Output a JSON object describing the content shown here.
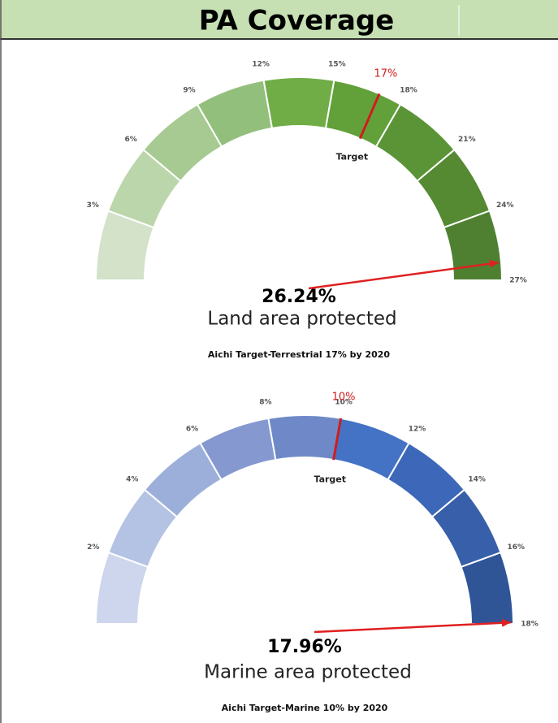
{
  "header": {
    "title": "PA Coverage"
  },
  "chart_data": [
    {
      "type": "gauge",
      "xlim": [
        0,
        27
      ],
      "xticks": [
        {
          "value": 3,
          "label": "3%"
        },
        {
          "value": 6,
          "label": "6%"
        },
        {
          "value": 9,
          "label": "9%"
        },
        {
          "value": 12,
          "label": "12%"
        },
        {
          "value": 15,
          "label": "15%"
        },
        {
          "value": 18,
          "label": "18%"
        },
        {
          "value": 21,
          "label": "21%"
        },
        {
          "value": 24,
          "label": "24%"
        },
        {
          "value": 27,
          "label": "27%"
        }
      ],
      "colors": [
        "#d3e2c9",
        "#bcd6ab",
        "#a7ca92",
        "#93bf7c",
        "#70ad47",
        "#62a03a",
        "#5a9436",
        "#558a33",
        "#4f8031"
      ],
      "target": {
        "value": 17,
        "label": "17%",
        "text": "Target"
      },
      "value": 26.24,
      "value_label": "26.24%",
      "caption": "Land area protected",
      "note": "Aichi Target-Terrestrial 17% by 2020"
    },
    {
      "type": "gauge",
      "xlim": [
        0,
        18
      ],
      "xticks": [
        {
          "value": 2,
          "label": "2%"
        },
        {
          "value": 4,
          "label": "4%"
        },
        {
          "value": 6,
          "label": "6%"
        },
        {
          "value": 8,
          "label": "8%"
        },
        {
          "value": 10,
          "label": "10%"
        },
        {
          "value": 12,
          "label": "12%"
        },
        {
          "value": 14,
          "label": "14%"
        },
        {
          "value": 16,
          "label": "16%"
        },
        {
          "value": 18,
          "label": "18%"
        }
      ],
      "colors": [
        "#cdd6ec",
        "#b4c2e3",
        "#9cafda",
        "#8598d0",
        "#6f89c8",
        "#4472c4",
        "#3d67b8",
        "#385fa9",
        "#2f5597"
      ],
      "target": {
        "value": 10,
        "label": "10%",
        "text": "Target"
      },
      "value": 17.96,
      "value_label": "17.96%",
      "caption": "Marine area protected",
      "note": "Aichi Target-Marine 10% by 2020"
    }
  ]
}
